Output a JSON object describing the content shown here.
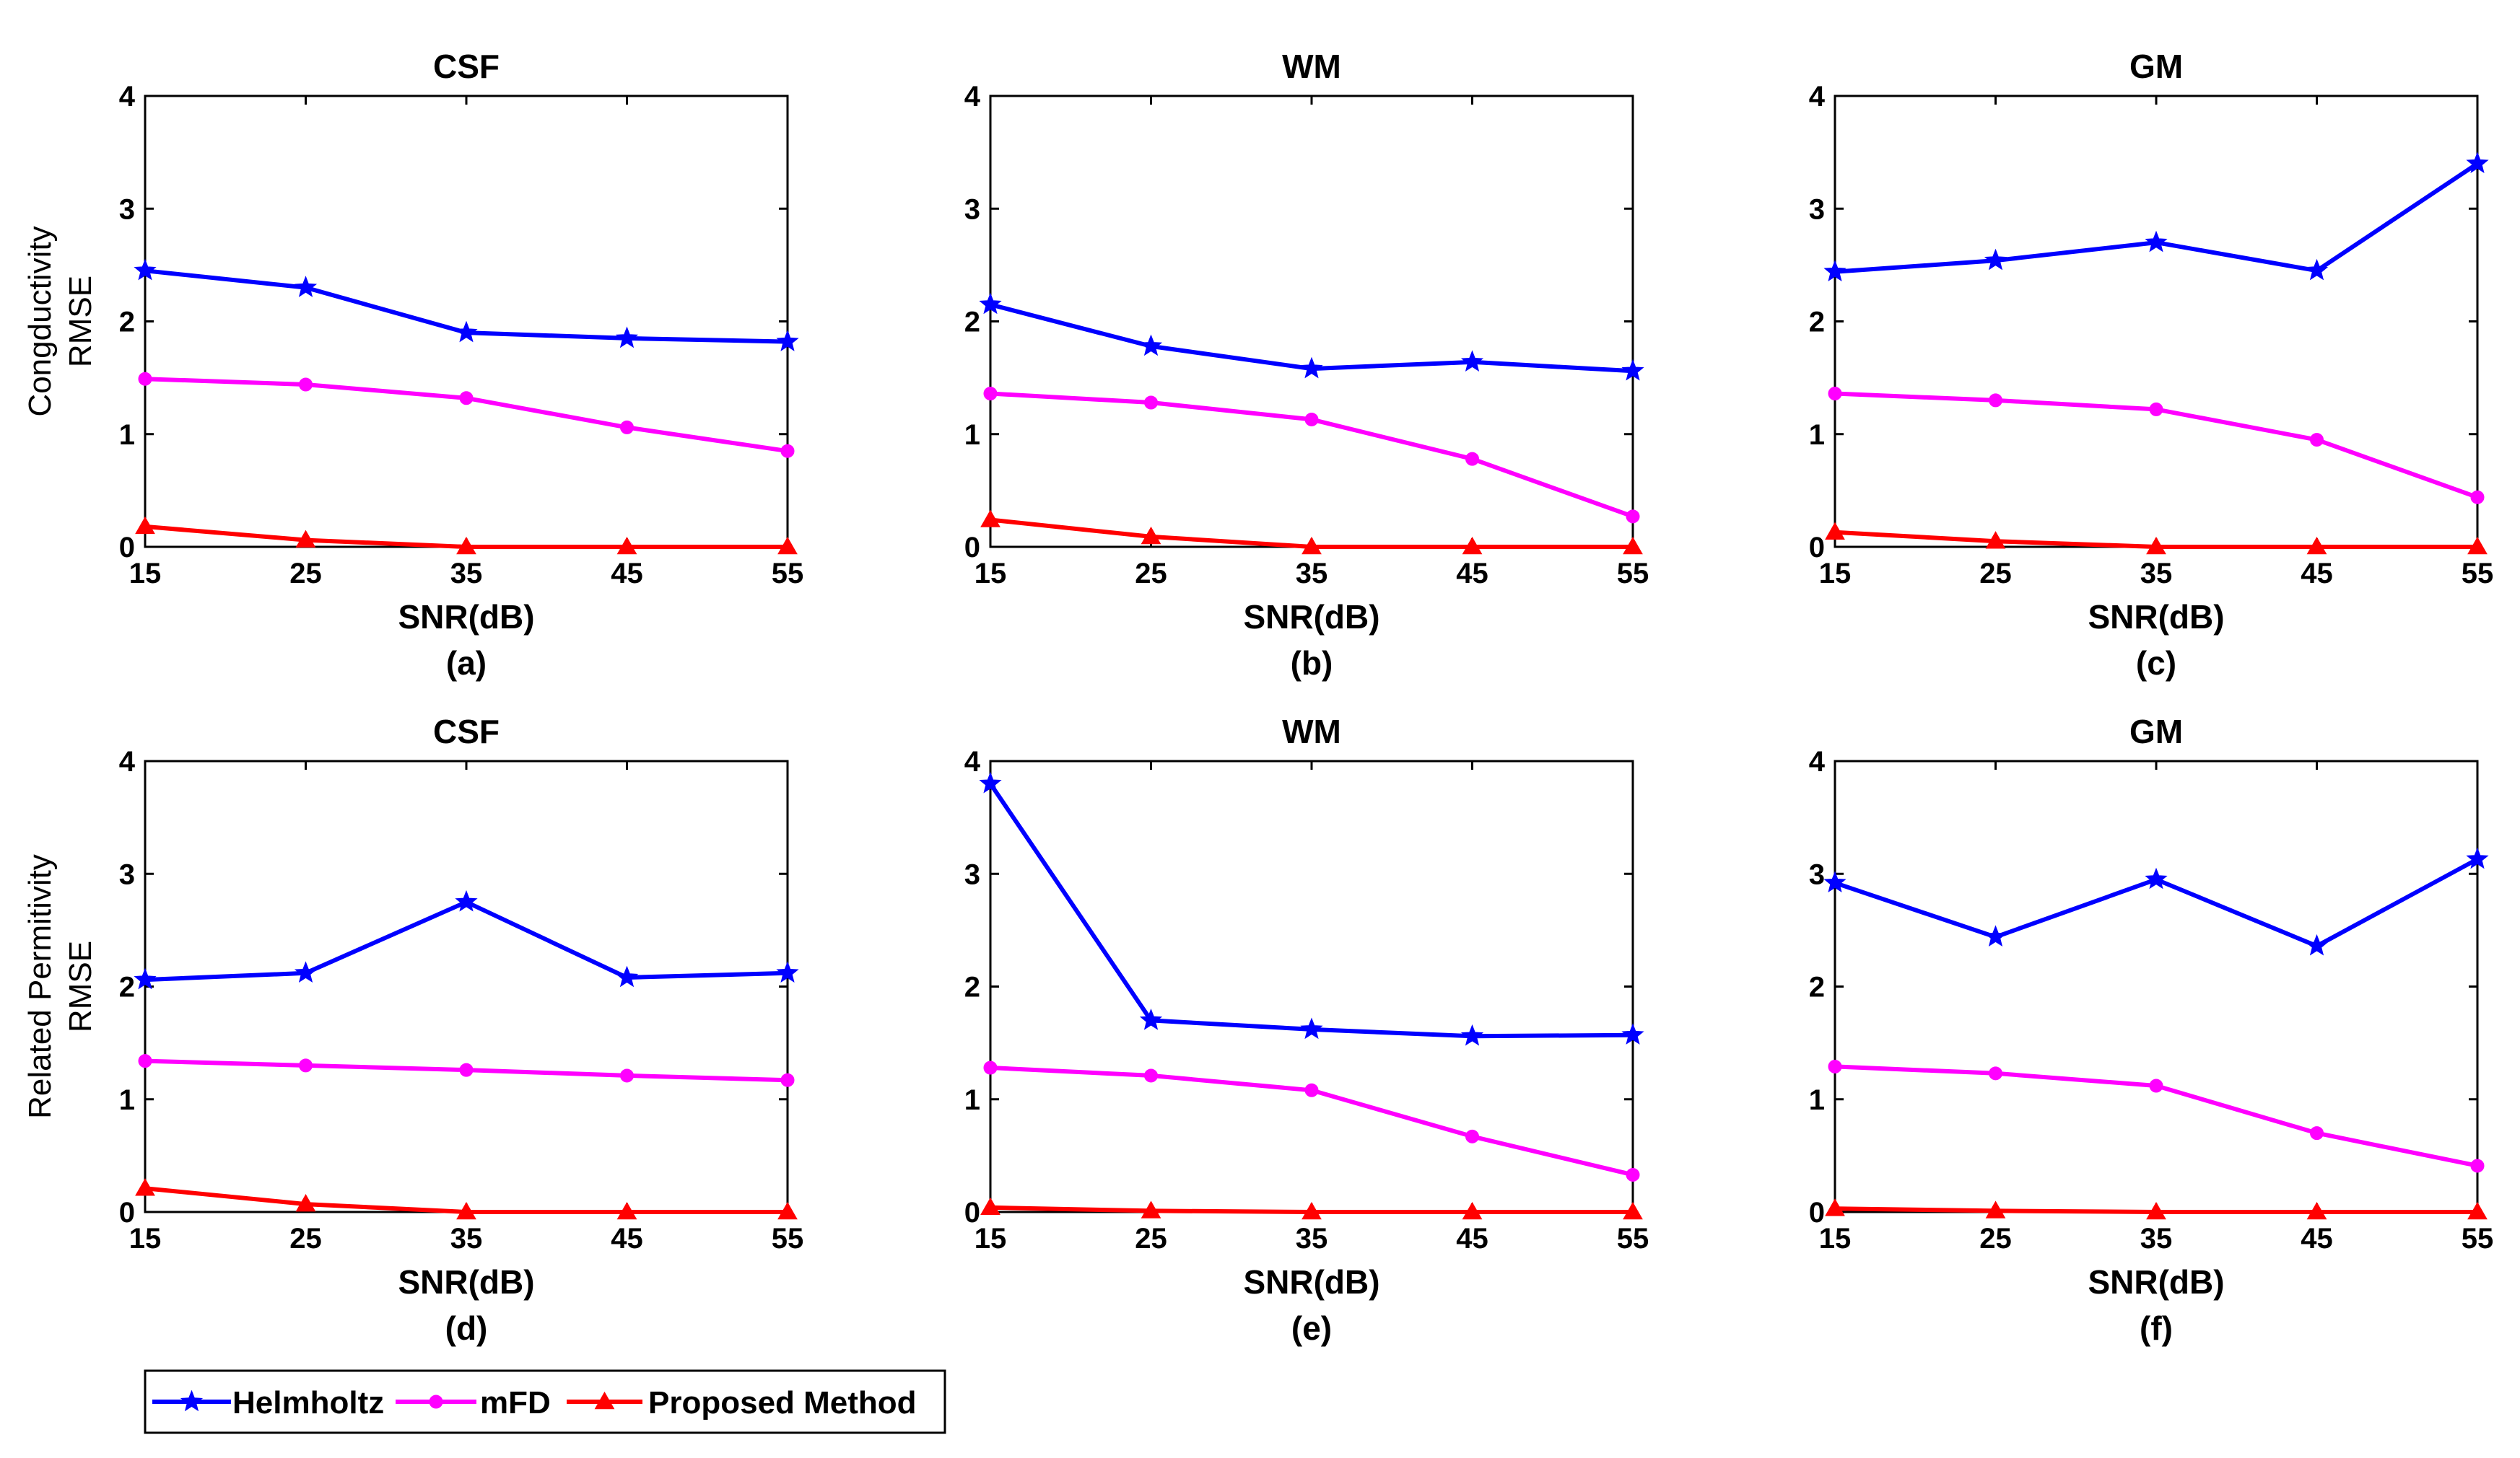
{
  "series_meta": [
    {
      "name": "Helmholtz",
      "color": "#0000FF",
      "marker": "star"
    },
    {
      "name": "mFD",
      "color": "#FF00FF",
      "marker": "circle"
    },
    {
      "name": "Proposed Method",
      "color": "#FF0000",
      "marker": "triangle"
    }
  ],
  "row_ylabels": [
    [
      "Congductivity",
      "RMSE"
    ],
    [
      "Related Permitivity",
      "RMSE"
    ]
  ],
  "chart_data": [
    {
      "type": "line",
      "panel": "(a)",
      "title": "CSF",
      "xlabel": "SNR(dB)",
      "ylabel": "Congductivity RMSE",
      "x": [
        15,
        25,
        35,
        45,
        55
      ],
      "xlim": [
        15,
        55
      ],
      "ylim": [
        0,
        4
      ],
      "xticks": [
        "15",
        "25",
        "35",
        "45",
        "55"
      ],
      "yticks": [
        "0",
        "1",
        "2",
        "3",
        "4"
      ],
      "series": [
        {
          "name": "Helmholtz",
          "values": [
            2.45,
            2.3,
            1.9,
            1.85,
            1.82
          ]
        },
        {
          "name": "mFD",
          "values": [
            1.49,
            1.44,
            1.32,
            1.06,
            0.85
          ]
        },
        {
          "name": "Proposed Method",
          "values": [
            0.18,
            0.06,
            0.0,
            0.0,
            0.0
          ]
        }
      ]
    },
    {
      "type": "line",
      "panel": "(b)",
      "title": "WM",
      "xlabel": "SNR(dB)",
      "ylabel": "",
      "x": [
        15,
        25,
        35,
        45,
        55
      ],
      "xlim": [
        15,
        55
      ],
      "ylim": [
        0,
        4
      ],
      "xticks": [
        "15",
        "25",
        "35",
        "45",
        "55"
      ],
      "yticks": [
        "0",
        "1",
        "2",
        "3",
        "4"
      ],
      "series": [
        {
          "name": "Helmholtz",
          "values": [
            2.15,
            1.78,
            1.58,
            1.64,
            1.56
          ]
        },
        {
          "name": "mFD",
          "values": [
            1.36,
            1.28,
            1.13,
            0.78,
            0.27
          ]
        },
        {
          "name": "Proposed Method",
          "values": [
            0.24,
            0.09,
            0.0,
            0.0,
            0.0
          ]
        }
      ]
    },
    {
      "type": "line",
      "panel": "(c)",
      "title": "GM",
      "xlabel": "SNR(dB)",
      "ylabel": "",
      "x": [
        15,
        25,
        35,
        45,
        55
      ],
      "xlim": [
        15,
        55
      ],
      "ylim": [
        0,
        4
      ],
      "xticks": [
        "15",
        "25",
        "35",
        "45",
        "55"
      ],
      "yticks": [
        "0",
        "1",
        "2",
        "3",
        "4"
      ],
      "series": [
        {
          "name": "Helmholtz",
          "values": [
            2.44,
            2.54,
            2.7,
            2.45,
            3.4
          ]
        },
        {
          "name": "mFD",
          "values": [
            1.36,
            1.3,
            1.22,
            0.95,
            0.44
          ]
        },
        {
          "name": "Proposed Method",
          "values": [
            0.13,
            0.05,
            0.0,
            0.0,
            0.0
          ]
        }
      ]
    },
    {
      "type": "line",
      "panel": "(d)",
      "title": "CSF",
      "xlabel": "SNR(dB)",
      "ylabel": "Related Permitivity RMSE",
      "x": [
        15,
        25,
        35,
        45,
        55
      ],
      "xlim": [
        15,
        55
      ],
      "ylim": [
        0,
        4
      ],
      "xticks": [
        "15",
        "25",
        "35",
        "45",
        "55"
      ],
      "yticks": [
        "0",
        "1",
        "2",
        "3",
        "4"
      ],
      "series": [
        {
          "name": "Helmholtz",
          "values": [
            2.06,
            2.12,
            2.75,
            2.08,
            2.12
          ]
        },
        {
          "name": "mFD",
          "values": [
            1.34,
            1.3,
            1.26,
            1.21,
            1.17
          ]
        },
        {
          "name": "Proposed Method",
          "values": [
            0.21,
            0.07,
            0.0,
            0.0,
            0.0
          ]
        }
      ]
    },
    {
      "type": "line",
      "panel": "(e)",
      "title": "WM",
      "xlabel": "SNR(dB)",
      "ylabel": "",
      "x": [
        15,
        25,
        35,
        45,
        55
      ],
      "xlim": [
        15,
        55
      ],
      "ylim": [
        0,
        4
      ],
      "xticks": [
        "15",
        "25",
        "35",
        "45",
        "55"
      ],
      "yticks": [
        "0",
        "1",
        "2",
        "3",
        "4"
      ],
      "series": [
        {
          "name": "Helmholtz",
          "values": [
            3.8,
            1.7,
            1.62,
            1.56,
            1.57
          ]
        },
        {
          "name": "mFD",
          "values": [
            1.28,
            1.21,
            1.08,
            0.67,
            0.33
          ]
        },
        {
          "name": "Proposed Method",
          "values": [
            0.04,
            0.01,
            0.0,
            0.0,
            0.0
          ]
        }
      ]
    },
    {
      "type": "line",
      "panel": "(f)",
      "title": "GM",
      "xlabel": "SNR(dB)",
      "ylabel": "",
      "x": [
        15,
        25,
        35,
        45,
        55
      ],
      "xlim": [
        15,
        55
      ],
      "ylim": [
        0,
        4
      ],
      "xticks": [
        "15",
        "25",
        "35",
        "45",
        "55"
      ],
      "yticks": [
        "0",
        "1",
        "2",
        "3",
        "4"
      ],
      "series": [
        {
          "name": "Helmholtz",
          "values": [
            2.92,
            2.44,
            2.95,
            2.36,
            3.13
          ]
        },
        {
          "name": "mFD",
          "values": [
            1.29,
            1.23,
            1.12,
            0.7,
            0.41
          ]
        },
        {
          "name": "Proposed Method",
          "values": [
            0.03,
            0.01,
            0.0,
            0.0,
            0.0
          ]
        }
      ]
    }
  ]
}
